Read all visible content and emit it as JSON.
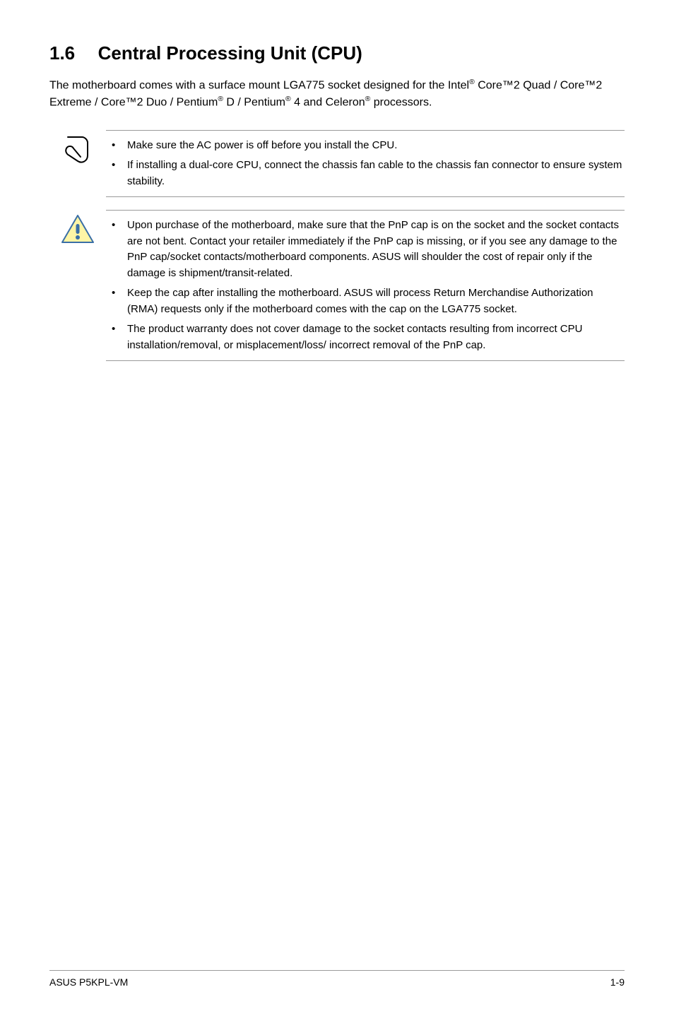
{
  "heading": {
    "number": "1.6",
    "title": "Central Processing Unit (CPU)"
  },
  "intro": {
    "html": "The motherboard comes with a surface mount LGA775 socket designed for the Intel<sup>®</sup> Core™2 Quad / Core™2 Extreme / Core™2 Duo / Pentium<sup>®</sup> D / Pentium<sup>®</sup> 4 and Celeron<sup>®</sup> processors."
  },
  "note_block": {
    "icon_name": "note-clip-icon",
    "items": [
      "Make sure the AC power is off before you install the CPU.",
      "If installing a dual-core CPU, connect the chassis fan cable to the chassis fan connector to ensure system stability."
    ]
  },
  "caution_block": {
    "icon_name": "caution-triangle-icon",
    "items": [
      "Upon purchase of the motherboard, make sure that the PnP cap is on the socket and the socket contacts are not bent. Contact your retailer immediately if the PnP cap is missing, or if you see any damage to the PnP cap/socket contacts/motherboard components. ASUS will shoulder the cost of repair only if the damage is shipment/transit-related.",
      "Keep the cap after installing the motherboard. ASUS will process Return Merchandise Authorization (RMA) requests only if the motherboard comes with the cap on the LGA775 socket.",
      "The product warranty does not cover damage to the socket contacts resulting from incorrect CPU installation/removal, or misplacement/loss/ incorrect removal of the PnP cap."
    ]
  },
  "footer": {
    "left": "ASUS P5KPL-VM",
    "right": "1-9"
  },
  "colors": {
    "text": "#000000",
    "rule": "#9a9a9a",
    "caution_fill": "#fef5a6",
    "caution_stroke": "#3a6fa6",
    "caution_exclaim": "#3a6fa6"
  },
  "typography": {
    "heading_fontsize": 26,
    "body_fontsize": 16,
    "bullet_fontsize": 15,
    "footer_fontsize": 14
  }
}
